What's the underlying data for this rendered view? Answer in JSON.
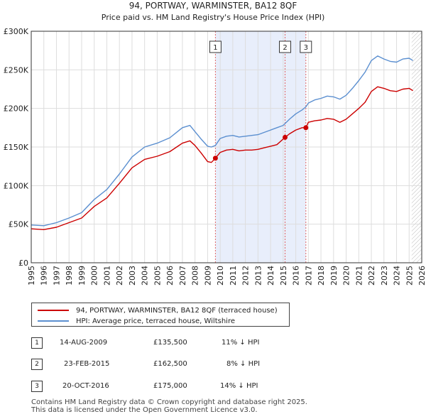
{
  "chart_data": {
    "type": "line",
    "title": "94, PORTWAY, WARMINSTER, BA12 8QF",
    "subtitle": "Price paid vs. HM Land Registry's House Price Index (HPI)",
    "xlim": [
      1995,
      2026
    ],
    "ylim": [
      0,
      300000
    ],
    "x_ticks": [
      "1995",
      "1996",
      "1997",
      "1998",
      "1999",
      "2000",
      "2001",
      "2002",
      "2003",
      "2004",
      "2005",
      "2006",
      "2007",
      "2008",
      "2009",
      "2010",
      "2011",
      "2012",
      "2013",
      "2014",
      "2015",
      "2016",
      "2017",
      "2018",
      "2019",
      "2020",
      "2021",
      "2022",
      "2023",
      "2024",
      "2025",
      "2026"
    ],
    "y_ticks": [
      {
        "value": 0,
        "label": "£0"
      },
      {
        "value": 50000,
        "label": "£50K"
      },
      {
        "value": 100000,
        "label": "£100K"
      },
      {
        "value": 150000,
        "label": "£150K"
      },
      {
        "value": 200000,
        "label": "£200K"
      },
      {
        "value": 250000,
        "label": "£250K"
      },
      {
        "value": 300000,
        "label": "£300K"
      }
    ],
    "grid": true,
    "shaded_region": [
      2009.62,
      2016.8
    ],
    "future_hatch_from": 2025.2,
    "series": [
      {
        "name": "94, PORTWAY, WARMINSTER, BA12 8QF (terraced house)",
        "color": "#cc0000",
        "x": [
          1995,
          1996,
          1997,
          1998,
          1999,
          2000,
          2001,
          2002,
          2003,
          2004,
          2005,
          2006,
          2007,
          2007.6,
          2008,
          2008.5,
          2009,
          2009.3,
          2009.62,
          2010,
          2010.5,
          2011,
          2011.5,
          2012,
          2012.5,
          2013,
          2013.5,
          2014,
          2014.5,
          2015.15,
          2015.5,
          2016,
          2016.5,
          2016.8,
          2017,
          2017.5,
          2018,
          2018.5,
          2019,
          2019.5,
          2020,
          2020.5,
          2021,
          2021.5,
          2022,
          2022.5,
          2023,
          2023.5,
          2024,
          2024.5,
          2025,
          2025.3
        ],
        "values": [
          44000,
          43000,
          46000,
          52000,
          58000,
          73000,
          84000,
          103000,
          123000,
          134000,
          138000,
          144000,
          155000,
          158000,
          152000,
          142000,
          131000,
          130000,
          135500,
          143000,
          146000,
          147000,
          145000,
          146000,
          146000,
          147000,
          149000,
          151000,
          153000,
          162500,
          167000,
          172000,
          175000,
          175000,
          182000,
          184000,
          185000,
          187000,
          186000,
          182000,
          186000,
          193000,
          200000,
          208000,
          222000,
          228000,
          226000,
          223000,
          222000,
          225000,
          226000,
          223000
        ]
      },
      {
        "name": "HPI: Average price, terraced house, Wiltshire",
        "color": "#5b8fd0",
        "x": [
          1995,
          1996,
          1997,
          1998,
          1999,
          2000,
          2001,
          2002,
          2003,
          2004,
          2005,
          2006,
          2007,
          2007.6,
          2008,
          2008.5,
          2009,
          2009.3,
          2009.62,
          2010,
          2010.5,
          2011,
          2011.5,
          2012,
          2012.5,
          2013,
          2013.5,
          2014,
          2014.5,
          2015,
          2015.5,
          2016,
          2016.5,
          2016.8,
          2017,
          2017.5,
          2018,
          2018.5,
          2019,
          2019.5,
          2020,
          2020.5,
          2021,
          2021.5,
          2022,
          2022.5,
          2023,
          2023.5,
          2024,
          2024.5,
          2025,
          2025.3
        ],
        "values": [
          49000,
          48000,
          52000,
          58000,
          65000,
          82000,
          95000,
          115000,
          137000,
          150000,
          155000,
          162000,
          175000,
          178000,
          170000,
          160000,
          151000,
          150000,
          152000,
          161000,
          164000,
          165000,
          163000,
          164000,
          165000,
          166000,
          169000,
          172000,
          175000,
          178000,
          186000,
          193000,
          198000,
          202000,
          207000,
          211000,
          213000,
          216000,
          215000,
          212000,
          217000,
          226000,
          236000,
          247000,
          262000,
          268000,
          264000,
          261000,
          260000,
          264000,
          265000,
          262000
        ]
      }
    ],
    "sale_markers": [
      {
        "label": "1",
        "x": 2009.62,
        "value": 135500
      },
      {
        "label": "2",
        "x": 2015.15,
        "value": 162500
      },
      {
        "label": "3",
        "x": 2016.8,
        "value": 175000
      }
    ]
  },
  "legend": {
    "items": [
      {
        "label": "94, PORTWAY, WARMINSTER, BA12 8QF (terraced house)",
        "color": "#cc0000"
      },
      {
        "label": "HPI: Average price, terraced house, Wiltshire",
        "color": "#5b8fd0"
      }
    ]
  },
  "sales": [
    {
      "num": "1",
      "date": "14-AUG-2009",
      "price": "£135,500",
      "hpi": "11% ↓ HPI"
    },
    {
      "num": "2",
      "date": "23-FEB-2015",
      "price": "£162,500",
      "hpi": "8% ↓ HPI"
    },
    {
      "num": "3",
      "date": "20-OCT-2016",
      "price": "£175,000",
      "hpi": "14% ↓ HPI"
    }
  ],
  "footer": {
    "line1": "Contains HM Land Registry data © Crown copyright and database right 2025.",
    "line2": "This data is licensed under the Open Government Licence v3.0."
  }
}
